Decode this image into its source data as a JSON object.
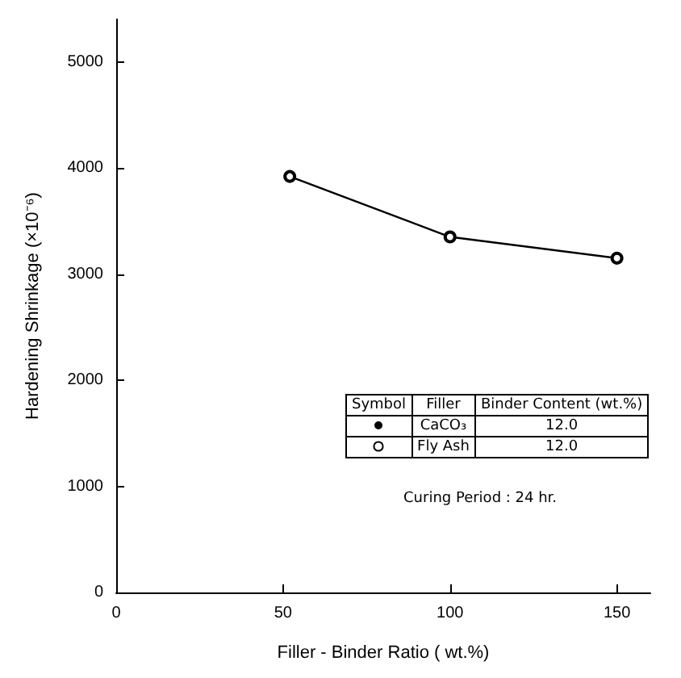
{
  "chart_data": {
    "type": "line",
    "xlabel": "Filler - Binder Ratio ( wt.%)",
    "ylabel": "Hardening Shrinkage (×10⁻⁶)",
    "x": [
      52,
      100,
      150
    ],
    "series": [
      {
        "name": "Fly Ash",
        "color": "#000000",
        "values": [
          3920,
          3350,
          3150
        ]
      }
    ],
    "xlim": [
      0,
      160
    ],
    "xticks": [
      0,
      50,
      100,
      150
    ],
    "ylim": [
      0,
      5400
    ],
    "yticks": [
      0,
      1000,
      2000,
      3000,
      4000,
      5000
    ],
    "grid": false,
    "legend": "right",
    "marker": "circle",
    "line_style": "solid",
    "annotations": [
      "Symbol",
      "Filler",
      "Binder Content (wt.%)",
      "CaCO₃",
      "12.0",
      "12.0",
      "Curing Period : 24 hr."
    ]
  }
}
